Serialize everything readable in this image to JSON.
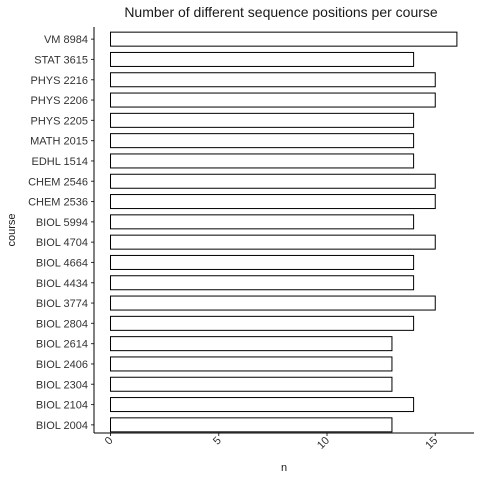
{
  "chart_data": {
    "type": "bar",
    "orientation": "horizontal",
    "title": "Number of different sequence positions per course",
    "xlabel": "n",
    "ylabel": "course",
    "xlim": [
      0,
      16
    ],
    "x_ticks": [
      0,
      5,
      10,
      15
    ],
    "x_tick_labels": [
      "0",
      "5",
      "10",
      "15"
    ],
    "grid": false,
    "categories": [
      "VM 8984",
      "STAT 3615",
      "PHYS 2216",
      "PHYS 2206",
      "PHYS 2205",
      "MATH 2015",
      "EDHL 1514",
      "CHEM 2546",
      "CHEM 2536",
      "BIOL 5994",
      "BIOL 4704",
      "BIOL 4664",
      "BIOL 4434",
      "BIOL 3774",
      "BIOL 2804",
      "BIOL 2614",
      "BIOL 2406",
      "BIOL 2304",
      "BIOL 2104",
      "BIOL 2004"
    ],
    "values": [
      16,
      14,
      15,
      15,
      14,
      14,
      14,
      15,
      15,
      14,
      15,
      14,
      14,
      15,
      14,
      13,
      13,
      13,
      14,
      13
    ],
    "bar_fill": "#ffffff",
    "bar_stroke": "#000000"
  }
}
